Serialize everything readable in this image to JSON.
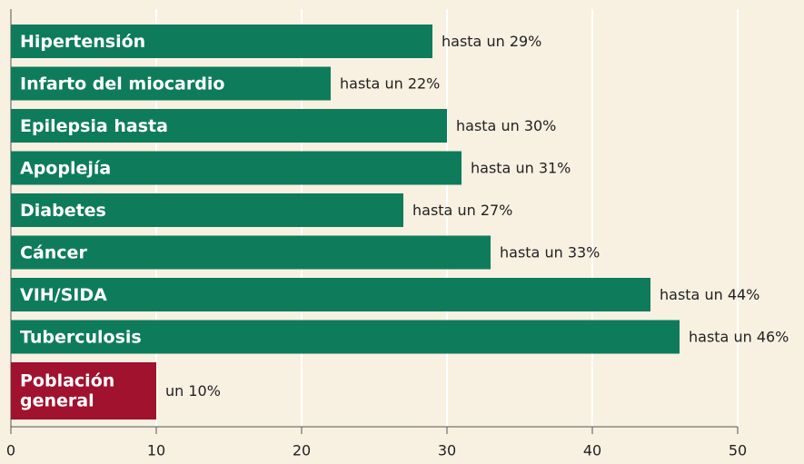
{
  "chart_data": {
    "type": "bar",
    "orientation": "horizontal",
    "categories": [
      "Hipertensión",
      "Infarto del miocardio",
      "Epilepsia hasta",
      "Apoplejía",
      "Diabetes",
      "Cáncer",
      "VIH/SIDA",
      "Tuberculosis",
      "Población general"
    ],
    "values": [
      29,
      22,
      30,
      31,
      27,
      33,
      44,
      46,
      10
    ],
    "value_labels": [
      "hasta un 29%",
      "hasta un 22%",
      "hasta un 30%",
      "hasta un 31%",
      "hasta un 27%",
      "hasta un 33%",
      "hasta un 44%",
      "hasta un 46%",
      "un 10%"
    ],
    "colors": [
      "#0e7c5a",
      "#0e7c5a",
      "#0e7c5a",
      "#0e7c5a",
      "#0e7c5a",
      "#0e7c5a",
      "#0e7c5a",
      "#0e7c5a",
      "#a0122e"
    ],
    "xlim": [
      0,
      50
    ],
    "xticks": [
      0,
      10,
      20,
      30,
      40,
      50
    ],
    "grid": true
  }
}
